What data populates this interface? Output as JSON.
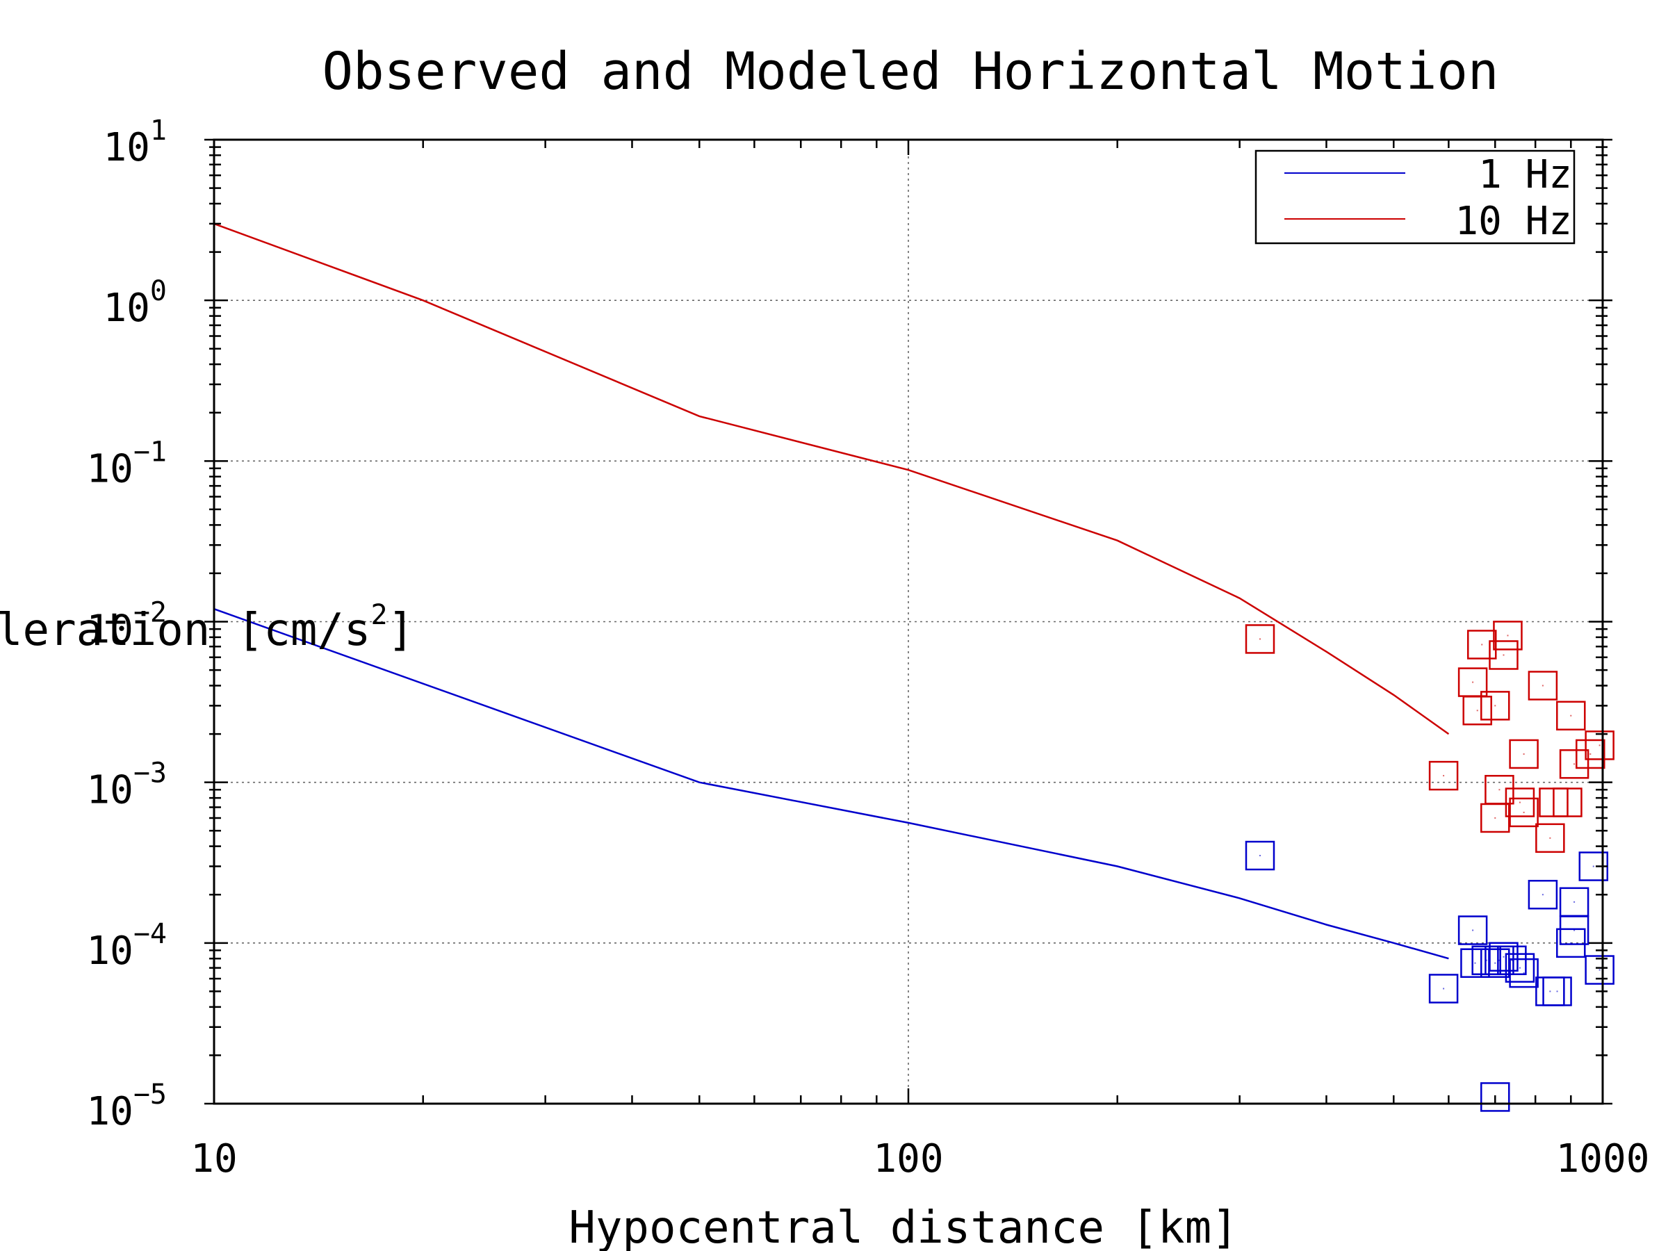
{
  "chart_data": {
    "type": "scatter",
    "title": "Observed and Modeled Horizontal Motion",
    "xlabel": "Hypocentral distance [km]",
    "ylabel_text": "leration [cm/s",
    "ylabel_sup": "2",
    "ylabel_close": "]",
    "x_scale": "log",
    "y_scale": "log",
    "xlim": [
      10,
      1000
    ],
    "ylim": [
      1e-05,
      10
    ],
    "grid": true,
    "legend_position": "top-right",
    "x_ticks": [
      {
        "value": 10,
        "label": "10"
      },
      {
        "value": 100,
        "label": "100"
      },
      {
        "value": 1000,
        "label": "1000"
      }
    ],
    "y_ticks": [
      {
        "value": 10,
        "base": "10",
        "exp": "1"
      },
      {
        "value": 1,
        "base": "10",
        "exp": "0"
      },
      {
        "value": 0.1,
        "base": "10",
        "exp": "−1"
      },
      {
        "value": 0.01,
        "base": "10",
        "exp": "−2"
      },
      {
        "value": 0.001,
        "base": "10",
        "exp": "−3"
      },
      {
        "value": 0.0001,
        "base": "10",
        "exp": "−4"
      },
      {
        "value": 1e-05,
        "base": "10",
        "exp": "−5"
      }
    ],
    "series": [
      {
        "name": "1 Hz",
        "color": "#0000cc",
        "line": [
          [
            10,
            0.012
          ],
          [
            50,
            0.001
          ],
          [
            100,
            0.00056
          ],
          [
            200,
            0.0003
          ],
          [
            300,
            0.00019
          ],
          [
            400,
            0.00013
          ],
          [
            500,
            0.0001
          ],
          [
            600,
            8e-05
          ]
        ],
        "points": [
          [
            321,
            0.00035
          ],
          [
            590,
            5.2e-05
          ],
          [
            650,
            0.00012
          ],
          [
            655,
            7.5e-05
          ],
          [
            680,
            7.8e-05
          ],
          [
            700,
            7.5e-05
          ],
          [
            710,
            7.8e-05
          ],
          [
            720,
            8.2e-05
          ],
          [
            740,
            7.8e-05
          ],
          [
            700,
            1.1e-05
          ],
          [
            760,
            7e-05
          ],
          [
            770,
            6.5e-05
          ],
          [
            820,
            0.0002
          ],
          [
            840,
            5e-05
          ],
          [
            860,
            5e-05
          ],
          [
            900,
            0.0001
          ],
          [
            910,
            0.00012
          ],
          [
            910,
            0.00018
          ],
          [
            970,
            0.0003
          ],
          [
            990,
            6.8e-05
          ]
        ]
      },
      {
        "name": "10 Hz",
        "color": "#cc0000",
        "line": [
          [
            10,
            3.0
          ],
          [
            20,
            1.0
          ],
          [
            50,
            0.19
          ],
          [
            100,
            0.088
          ],
          [
            200,
            0.032
          ],
          [
            300,
            0.014
          ],
          [
            400,
            0.0065
          ],
          [
            500,
            0.0035
          ],
          [
            600,
            0.002
          ]
        ],
        "points": [
          [
            321,
            0.0078
          ],
          [
            590,
            0.0011
          ],
          [
            650,
            0.0042
          ],
          [
            660,
            0.0028
          ],
          [
            670,
            0.0072
          ],
          [
            700,
            0.0006
          ],
          [
            700,
            0.003
          ],
          [
            710,
            0.0009
          ],
          [
            720,
            0.0062
          ],
          [
            730,
            0.0082
          ],
          [
            760,
            0.00075
          ],
          [
            770,
            0.0015
          ],
          [
            770,
            0.00065
          ],
          [
            820,
            0.004
          ],
          [
            840,
            0.00045
          ],
          [
            850,
            0.00075
          ],
          [
            890,
            0.00075
          ],
          [
            900,
            0.0026
          ],
          [
            910,
            0.0013
          ],
          [
            960,
            0.0015
          ],
          [
            990,
            0.0017
          ]
        ]
      }
    ]
  }
}
